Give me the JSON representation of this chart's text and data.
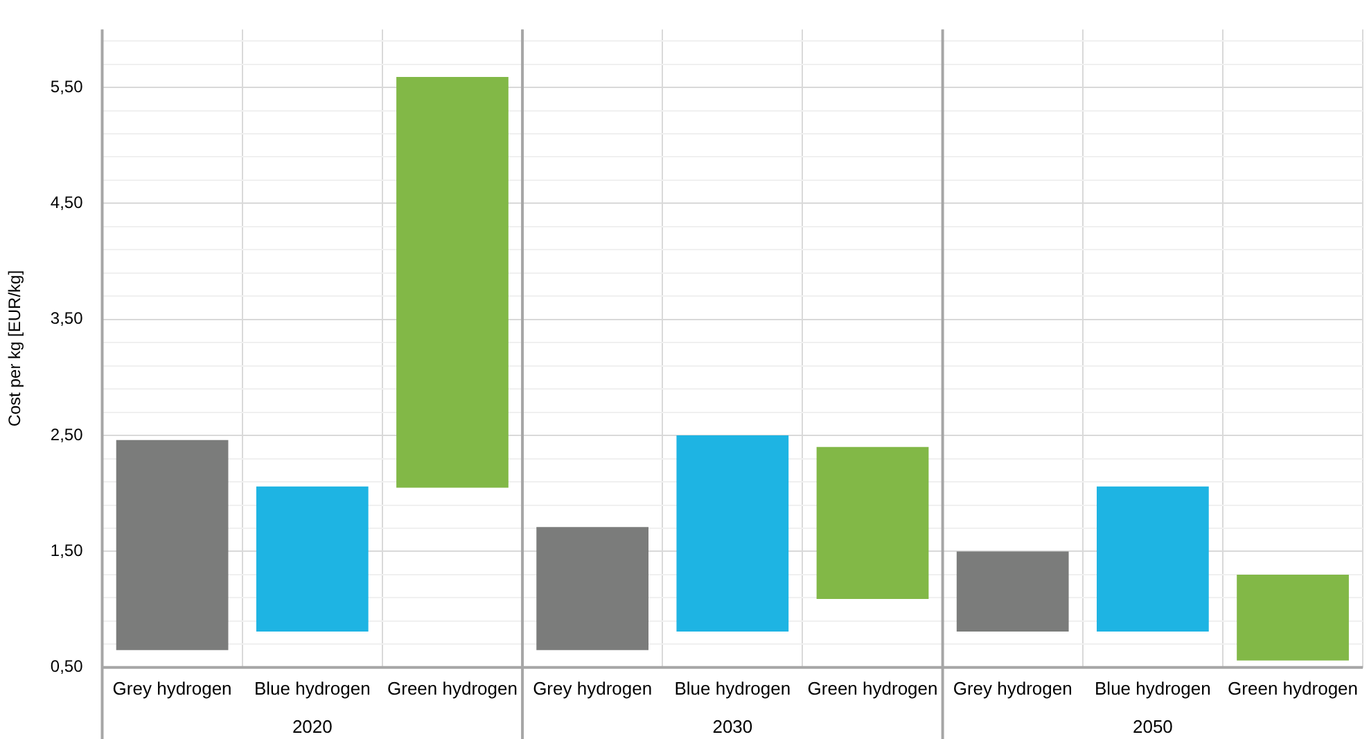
{
  "chart_data": {
    "type": "bar",
    "ylabel": "Cost per kg [EUR/kg]",
    "categories": [
      "Grey hydrogen",
      "Blue hydrogen",
      "Green hydrogen",
      "Grey hydrogen",
      "Blue hydrogen",
      "Green hydrogen",
      "Grey hydrogen",
      "Blue hydrogen",
      "Green hydrogen"
    ],
    "base": [
      0.65,
      0.81,
      2.05,
      0.65,
      0.81,
      1.09,
      0.81,
      0.81,
      0.56
    ],
    "values": [
      1.81,
      1.25,
      3.54,
      1.06,
      1.69,
      1.31,
      0.69,
      1.25,
      0.74
    ],
    "colors": [
      "#7b7c7b",
      "#1eb4e3",
      "#82b847",
      "#7b7c7b",
      "#1eb4e3",
      "#82b847",
      "#7b7c7b",
      "#1eb4e3",
      "#82b847"
    ],
    "ylim": [
      0.5,
      6.0
    ],
    "yticks": [
      {
        "value": 0.5,
        "label": "0,50"
      },
      {
        "value": 0.7,
        "label": null
      },
      {
        "value": 0.9,
        "label": null
      },
      {
        "value": 1.1,
        "label": null
      },
      {
        "value": 1.3,
        "label": null
      },
      {
        "value": 1.5,
        "label": "1,50"
      },
      {
        "value": 1.7,
        "label": null
      },
      {
        "value": 1.9,
        "label": null
      },
      {
        "value": 2.1,
        "label": null
      },
      {
        "value": 2.3,
        "label": null
      },
      {
        "value": 2.5,
        "label": "2,50"
      },
      {
        "value": 2.7,
        "label": null
      },
      {
        "value": 2.9,
        "label": null
      },
      {
        "value": 3.1,
        "label": null
      },
      {
        "value": 3.3,
        "label": null
      },
      {
        "value": 3.5,
        "label": "3,50"
      },
      {
        "value": 3.7,
        "label": null
      },
      {
        "value": 3.9,
        "label": null
      },
      {
        "value": 4.1,
        "label": null
      },
      {
        "value": 4.3,
        "label": null
      },
      {
        "value": 4.5,
        "label": "4,50"
      },
      {
        "value": 4.7,
        "label": null
      },
      {
        "value": 4.9,
        "label": null
      },
      {
        "value": 5.1,
        "label": null
      },
      {
        "value": 5.3,
        "label": null
      },
      {
        "value": 5.5,
        "label": "5,50"
      },
      {
        "value": 5.7,
        "label": null
      },
      {
        "value": 5.9,
        "label": null
      }
    ],
    "grid": true,
    "annotations": [
      "2020",
      "2030",
      "2050"
    ]
  }
}
